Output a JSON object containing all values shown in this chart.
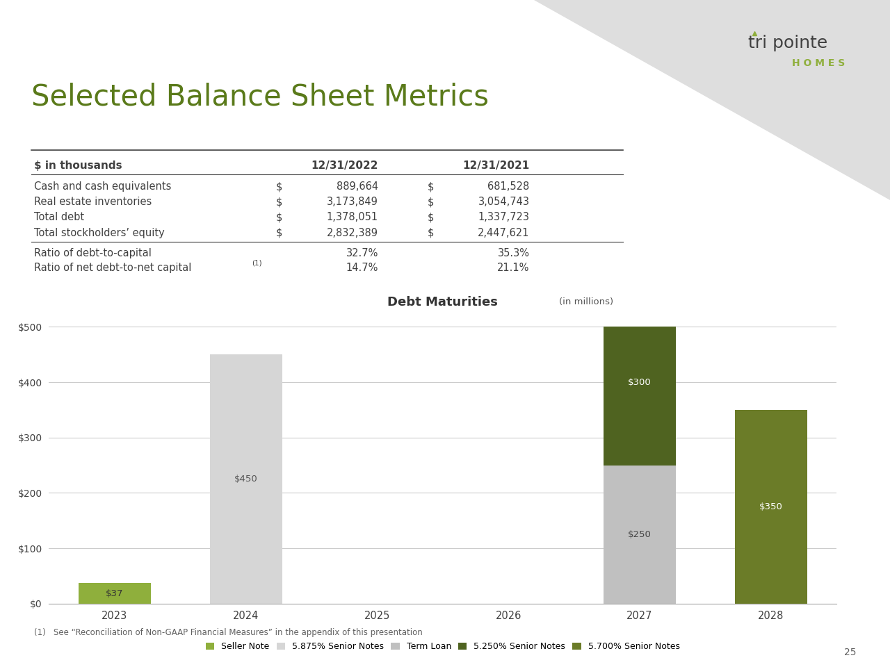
{
  "title": "Selected Balance Sheet Metrics",
  "background_color": "#ffffff",
  "table": {
    "header": [
      "$ in thousands",
      "12/31/2022",
      "12/31/2021"
    ],
    "rows": [
      [
        "Cash and cash equivalents",
        "$",
        "889,664",
        "$",
        "681,528"
      ],
      [
        "Real estate inventories",
        "$",
        "3,173,849",
        "$",
        "3,054,743"
      ],
      [
        "Total debt",
        "$",
        "1,378,051",
        "$",
        "1,337,723"
      ],
      [
        "Total stockholders’ equity",
        "$",
        "2,832,389",
        "$",
        "2,447,621"
      ]
    ],
    "ratios": [
      [
        "Ratio of debt-to-capital",
        "32.7%",
        "35.3%"
      ],
      [
        "Ratio of net debt-to-net capital",
        "14.7%",
        "21.1%"
      ]
    ]
  },
  "chart": {
    "title": "Debt Maturities",
    "title_suffix": " (in millions)",
    "years": [
      2023,
      2024,
      2025,
      2026,
      2027,
      2028
    ],
    "series": [
      {
        "name": "Seller Note",
        "color": "#8faf3c",
        "values": [
          37,
          0,
          0,
          0,
          0,
          0
        ]
      },
      {
        "name": "5.875% Senior Notes",
        "color": "#d6d6d6",
        "values": [
          0,
          450,
          0,
          0,
          0,
          0
        ]
      },
      {
        "name": "Term Loan",
        "color": "#c0c0c0",
        "values": [
          0,
          0,
          0,
          0,
          250,
          0
        ]
      },
      {
        "name": "5.250% Senior Notes",
        "color": "#4f6320",
        "values": [
          0,
          0,
          0,
          0,
          300,
          0
        ]
      },
      {
        "name": "5.700% Senior Notes",
        "color": "#6b7c28",
        "values": [
          0,
          0,
          0,
          0,
          0,
          350
        ]
      }
    ],
    "ylim": [
      0,
      500
    ],
    "yticks": [
      0,
      100,
      200,
      300,
      400,
      500
    ],
    "ytick_labels": [
      "$0",
      "$100",
      "$200",
      "$300",
      "$400",
      "$500"
    ]
  },
  "footnote": "(1)   See “Reconciliation of Non-GAAP Financial Measures” in the appendix of this presentation",
  "page_number": "25",
  "title_color": "#5a7a1a",
  "text_color": "#404040",
  "grid_color": "#cccccc",
  "logo_color_text": "#404040",
  "logo_color_homes": "#8faf3c",
  "logo_triangle_color": "#8faf3c",
  "diagonal_bg_color": "#dedede"
}
